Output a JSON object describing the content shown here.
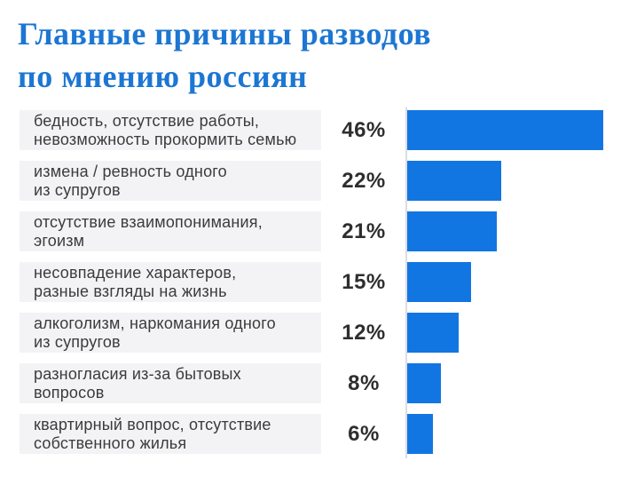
{
  "title": {
    "line1": "Главные причины разводов",
    "line2": "по мнению россиян"
  },
  "chart_data": {
    "type": "bar",
    "orientation": "horizontal",
    "title": "Главные причины разводов по мнению россиян",
    "categories": [
      "бедность, отсутствие работы, невозможность прокормить семью",
      "измена / ревность одного из супругов",
      "отсутствие взаимопонимания, эгоизм",
      "несовпадение характеров, разные взгляды на жизнь",
      "алкоголизм, наркомания одного из супругов",
      "разногласия из-за бытовых вопросов",
      "квартирный вопрос, отсутствие собственного жилья"
    ],
    "categories_lines": [
      [
        "бедность, отсутствие работы,",
        "невозможность прокормить семью"
      ],
      [
        "измена / ревность одного",
        "из супругов"
      ],
      [
        "отсутствие взаимопонимания,",
        "эгоизм"
      ],
      [
        "несовпадение характеров,",
        "разные взгляды на жизнь"
      ],
      [
        "алкоголизм, наркомания одного",
        "из супругов"
      ],
      [
        "разногласия из-за бытовых",
        "вопросов"
      ],
      [
        "квартирный вопрос, отсутствие",
        "собственного жилья"
      ]
    ],
    "values": [
      46,
      22,
      21,
      15,
      12,
      8,
      6
    ],
    "value_labels": [
      "46%",
      "22%",
      "21%",
      "15%",
      "12%",
      "8%",
      "6%"
    ],
    "xlim": [
      0,
      49
    ],
    "grid": false,
    "legend": "none",
    "colors": {
      "bar": "#1276e2",
      "title_text": "#1c76d3",
      "label_background": "#f3f3f6",
      "label_text": "#3b3b3b",
      "value_text": "#2e2e2e",
      "axis_line": "#dcdce4",
      "background": "#ffffff"
    }
  }
}
